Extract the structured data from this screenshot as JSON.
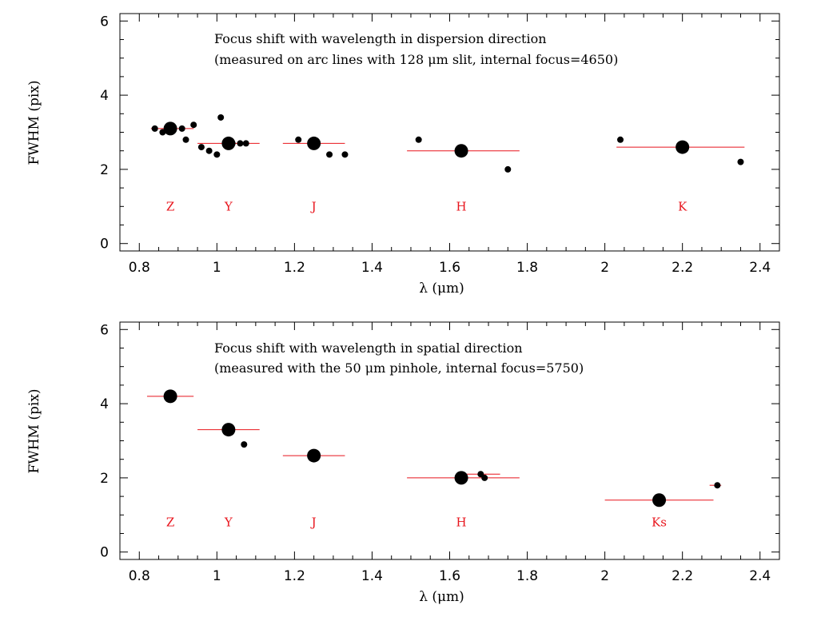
{
  "chart_data": [
    {
      "type": "scatter",
      "annotation_lines": [
        "Focus shift with wavelength in dispersion direction",
        "(measured on arc lines with 128 μm slit, internal focus=4650)"
      ],
      "xlabel": "λ (μm)",
      "ylabel": "FWHM (pix)",
      "xlim": [
        0.75,
        2.45
      ],
      "ylim": [
        -0.2,
        6.2
      ],
      "xticks": [
        0.8,
        1.0,
        1.2,
        1.4,
        1.6,
        1.8,
        2.0,
        2.2,
        2.4
      ],
      "xtick_labels": [
        "0.8",
        "1",
        "1.2",
        "1.4",
        "1.6",
        "1.8",
        "2",
        "2.2",
        "2.4"
      ],
      "yticks": [
        0,
        2,
        4,
        6
      ],
      "ytick_labels": [
        "0",
        "2",
        "4",
        "6"
      ],
      "bands": [
        {
          "label": "Z",
          "label_x": 0.88,
          "label_y": 1.0,
          "range": [
            0.83,
            0.94
          ],
          "level": 3.1,
          "mean": {
            "x": 0.88,
            "y": 3.1
          }
        },
        {
          "label": "Y",
          "label_x": 1.03,
          "label_y": 1.0,
          "range": [
            0.95,
            1.11
          ],
          "level": 2.7,
          "mean": {
            "x": 1.03,
            "y": 2.7
          }
        },
        {
          "label": "J",
          "label_x": 1.25,
          "label_y": 1.0,
          "range": [
            1.17,
            1.33
          ],
          "level": 2.7,
          "mean": {
            "x": 1.25,
            "y": 2.7
          }
        },
        {
          "label": "H",
          "label_x": 1.63,
          "label_y": 1.0,
          "range": [
            1.49,
            1.78
          ],
          "level": 2.5,
          "mean": {
            "x": 1.63,
            "y": 2.5
          }
        },
        {
          "label": "K",
          "label_x": 2.2,
          "label_y": 1.0,
          "range": [
            2.03,
            2.36
          ],
          "level": 2.6,
          "mean": {
            "x": 2.2,
            "y": 2.6
          }
        }
      ],
      "points": [
        {
          "x": 0.84,
          "y": 3.1
        },
        {
          "x": 0.86,
          "y": 3.0
        },
        {
          "x": 0.91,
          "y": 3.1
        },
        {
          "x": 0.92,
          "y": 2.8
        },
        {
          "x": 0.94,
          "y": 3.2
        },
        {
          "x": 0.96,
          "y": 2.6
        },
        {
          "x": 0.98,
          "y": 2.5
        },
        {
          "x": 1.0,
          "y": 2.4
        },
        {
          "x": 1.01,
          "y": 3.4
        },
        {
          "x": 1.04,
          "y": 2.7
        },
        {
          "x": 1.06,
          "y": 2.7
        },
        {
          "x": 1.075,
          "y": 2.7
        },
        {
          "x": 1.21,
          "y": 2.8
        },
        {
          "x": 1.29,
          "y": 2.4
        },
        {
          "x": 1.33,
          "y": 2.4
        },
        {
          "x": 1.52,
          "y": 2.8
        },
        {
          "x": 1.75,
          "y": 2.0
        },
        {
          "x": 2.04,
          "y": 2.8
        },
        {
          "x": 2.35,
          "y": 2.2
        }
      ]
    },
    {
      "type": "scatter",
      "annotation_lines": [
        "Focus shift with wavelength in spatial direction",
        "(measured with the 50 μm pinhole, internal focus=5750)"
      ],
      "xlabel": "λ (μm)",
      "ylabel": "FWHM (pix)",
      "xlim": [
        0.75,
        2.45
      ],
      "ylim": [
        -0.2,
        6.2
      ],
      "xticks": [
        0.8,
        1.0,
        1.2,
        1.4,
        1.6,
        1.8,
        2.0,
        2.2,
        2.4
      ],
      "xtick_labels": [
        "0.8",
        "1",
        "1.2",
        "1.4",
        "1.6",
        "1.8",
        "2",
        "2.2",
        "2.4"
      ],
      "yticks": [
        0,
        2,
        4,
        6
      ],
      "ytick_labels": [
        "0",
        "2",
        "4",
        "6"
      ],
      "bands": [
        {
          "label": "Z",
          "label_x": 0.88,
          "label_y": 0.8,
          "range": [
            0.82,
            0.94
          ],
          "level": 4.2,
          "mean": {
            "x": 0.88,
            "y": 4.2
          }
        },
        {
          "label": "Y",
          "label_x": 1.03,
          "label_y": 0.8,
          "range": [
            0.95,
            1.11
          ],
          "level": 3.3,
          "mean": {
            "x": 1.03,
            "y": 3.3
          }
        },
        {
          "label": "J",
          "label_x": 1.25,
          "label_y": 0.8,
          "range": [
            1.17,
            1.33
          ],
          "level": 2.6,
          "mean": {
            "x": 1.25,
            "y": 2.6
          }
        },
        {
          "label": "H",
          "label_x": 1.63,
          "label_y": 0.8,
          "range": [
            1.49,
            1.78
          ],
          "level": 2.0,
          "mean": {
            "x": 1.63,
            "y": 2.0
          }
        },
        {
          "label": "Ks",
          "label_x": 2.14,
          "label_y": 0.8,
          "range": [
            2.0,
            2.28
          ],
          "level": 1.4,
          "mean": {
            "x": 2.14,
            "y": 1.4
          }
        }
      ],
      "extra_segments": [
        {
          "range": [
            1.63,
            1.73
          ],
          "level": 2.1
        },
        {
          "range": [
            2.27,
            2.3
          ],
          "level": 1.8
        }
      ],
      "points": [
        {
          "x": 1.07,
          "y": 2.9
        },
        {
          "x": 1.68,
          "y": 2.1
        },
        {
          "x": 1.69,
          "y": 2.0
        },
        {
          "x": 2.29,
          "y": 1.8
        }
      ]
    }
  ]
}
